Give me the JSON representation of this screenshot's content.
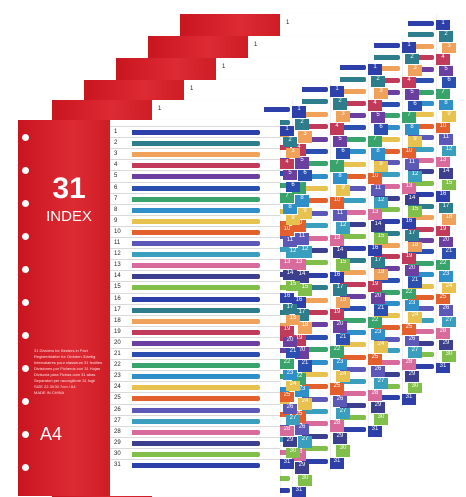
{
  "product": {
    "count": "31",
    "label": "INDEX",
    "size": "A4"
  },
  "tabs": [
    "1",
    "2",
    "3",
    "4",
    "5",
    "6",
    "7",
    "8",
    "9",
    "10",
    "11",
    "12",
    "13",
    "14",
    "15",
    "16",
    "17",
    "18",
    "19",
    "20",
    "21",
    "22",
    "23",
    "24",
    "25",
    "26",
    "27",
    "28",
    "29",
    "30",
    "31"
  ],
  "colors": [
    "#2d3fa8",
    "#2e7d8c",
    "#f0a15a",
    "#c23a5a",
    "#6b3fa0",
    "#2b4fb0",
    "#38a36a",
    "#2f8fc9",
    "#e7c24e",
    "#e35f2b",
    "#5b58b8",
    "#3a9fbe",
    "#d96a9c",
    "#3b3f8e",
    "#7fbf4a"
  ],
  "packaging_text": [
    "31 Dividers for Binders in Pact",
    "Registerblatter fur Ordnern 31teilig",
    "Intercalaires pour classeurs 31 feuilles",
    "Divisiones por Ficheros con 31 Hojas",
    "Divisoria para Fichas com 31 abas",
    "Separatori per raccoglitore 31 fogli",
    "SIZE 22.3X30.7cm / A4",
    "MADE IN CHINA"
  ]
}
